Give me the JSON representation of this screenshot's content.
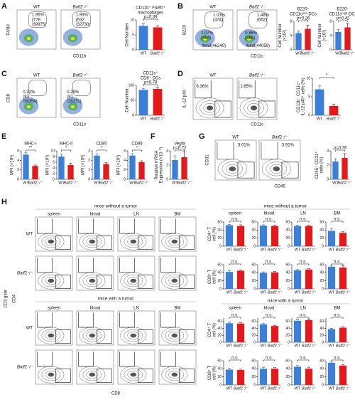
{
  "colors": [
    "#3b7fd8",
    "#e31a1c"
  ],
  "categories": [
    "WT",
    "Batf2⁻/⁻"
  ],
  "panels": [
    {
      "label": "A",
      "y_axis": "F4/80",
      "x_axis": "CD11b",
      "flows": [
        {
          "title": "WT",
          "gates": [
            "1.95%",
            "(778",
            "/39975)"
          ]
        },
        {
          "title": "Batf2⁻/⁻",
          "gates": [
            "1.93%",
            "(632",
            "/32730)"
          ]
        }
      ],
      "bars": [
        {
          "title": [
            "CD11b⁺ F4/80⁺",
            "macrophages"
          ],
          "ylabel": [
            "Cell Number"
          ],
          "ylim": [
            0,
            10
          ],
          "yticks": [
            0,
            5,
            10
          ],
          "values": [
            8,
            7.5
          ],
          "errors": [
            0.8,
            0.6
          ],
          "sig": "p=0.39"
        }
      ]
    },
    {
      "label": "B",
      "y_axis": "B220",
      "x_axis": "CD11c",
      "flows": [
        {
          "title": "WT",
          "gates": [
            "1.03%",
            "(474)",
            "1.07%",
            "(494)",
            "/total(46240)"
          ]
        },
        {
          "title": "Batf2⁻/⁻",
          "gates": [
            "1.48%",
            "(652)",
            "0.86%",
            "(380)",
            "/total(44059)"
          ]
        }
      ],
      "bars": [
        {
          "title": [
            "B220⁺",
            "CD11cᵐⁱᵈ DCs"
          ],
          "ylabel": [
            "Cell Number",
            "(×10²)"
          ],
          "ylim": [
            0,
            8
          ],
          "yticks": [
            0,
            4,
            8
          ],
          "values": [
            4.7,
            5.9
          ],
          "errors": [
            0.6,
            1.0
          ],
          "sig": "p=0.26"
        },
        {
          "title": [
            "B220⁻",
            "CD11cʰⁱᵍʰ DCs"
          ],
          "ylabel": [
            "Cell Number",
            "(×10²)"
          ],
          "ylim": [
            0,
            8
          ],
          "yticks": [
            0,
            4,
            8
          ],
          "values": [
            5,
            6.3
          ],
          "errors": [
            0.7,
            1.2
          ],
          "sig": "p=0.42"
        }
      ]
    },
    {
      "label": "C",
      "y_axis": "CD8",
      "x_axis": "CD11c",
      "flows": [
        {
          "title": "WT",
          "gates": [
            "0.22%",
            "(83",
            "/38354)"
          ]
        },
        {
          "title": "Batf2⁻/⁻",
          "gates": [
            "0.29%",
            "(81",
            "/28231)"
          ]
        }
      ],
      "bars": [
        {
          "title": [
            "CD11c⁺",
            "CD8⁺ DCs"
          ],
          "ylabel": [
            "Cell Number"
          ],
          "ylim": [
            0,
            100
          ],
          "yticks": [
            0,
            50,
            100
          ],
          "values": [
            85,
            88
          ],
          "errors": [
            5,
            6
          ],
          "sig": "p=0.78"
        }
      ]
    },
    {
      "label": "D",
      "y_axis": "IL-12 p40",
      "x_axis": "CD11c",
      "flows": [
        {
          "title": "WT",
          "gates": [
            "6.36%"
          ]
        },
        {
          "title": "Batf2⁻/⁻",
          "gates": [
            "2.85%"
          ]
        }
      ],
      "bars": [
        {
          "ylabel": [
            "CD11b⁻ CD11c⁺",
            "IL-12 p40⁺ cells (%)"
          ],
          "ylim": [
            0,
            10
          ],
          "yticks": [
            0,
            5,
            10
          ],
          "values": [
            7,
            2.5
          ],
          "errors": [
            1.0,
            0.5
          ],
          "sig": "*"
        }
      ]
    },
    {
      "label": "E",
      "bars": [
        {
          "title": [
            "MHC-I"
          ],
          "ylabel": [
            "MFI (×10²)"
          ],
          "ylim": [
            0,
            6
          ],
          "yticks": [
            0,
            2,
            4,
            6
          ],
          "values": [
            5.2,
            2.8
          ],
          "errors": [
            0.4,
            0.2
          ],
          "sig": "**"
        },
        {
          "title": [
            "MHC-II"
          ],
          "ylabel": [
            "MFI (×10³)"
          ],
          "ylim": [
            0,
            10
          ],
          "yticks": [
            0,
            2,
            4,
            6,
            8,
            10
          ],
          "values": [
            8,
            5
          ],
          "errors": [
            0.8,
            0.6
          ],
          "sig": "*"
        },
        {
          "title": [
            "CD80"
          ],
          "ylabel": [
            "MFI (×10²)"
          ],
          "ylim": [
            0,
            3
          ],
          "yticks": [
            0,
            1,
            2,
            3
          ],
          "values": [
            2.5,
            1.6
          ],
          "errors": [
            0.2,
            0.15
          ],
          "sig": "*"
        },
        {
          "title": [
            "CD86"
          ],
          "ylabel": [
            "MFI (×10³)"
          ],
          "ylim": [
            0,
            6
          ],
          "yticks": [
            0,
            2,
            4,
            6
          ],
          "values": [
            5,
            3.6
          ],
          "errors": [
            0.4,
            0.3
          ],
          "sig": "*"
        }
      ]
    },
    {
      "label": "F",
      "bars": [
        {
          "title": [
            "Vegfa"
          ],
          "ylabel": [
            "Relative mRNA",
            "Expression (×10⁻³)"
          ],
          "ylim": [
            0,
            4
          ],
          "yticks": [
            0,
            2,
            4
          ],
          "values": [
            2.7,
            3.1
          ],
          "errors": [
            0.6,
            0.8
          ],
          "sig": "p=0.72"
        }
      ]
    },
    {
      "label": "G",
      "y_axis": "CD31",
      "x_axis": "CD45",
      "flows": [
        {
          "title": "WT",
          "gates": [
            "3.01%"
          ]
        },
        {
          "title": "Batf2⁻/⁻",
          "gates": [
            "3.91%"
          ]
        }
      ],
      "bars": [
        {
          "ylabel": [
            "CD45⁻ CD31⁺",
            "cells (%)"
          ],
          "ylim": [
            0,
            4
          ],
          "yticks": [
            0,
            2,
            4
          ],
          "values": [
            2.5,
            3
          ],
          "errors": [
            0.4,
            0.6
          ],
          "sig": "p=0.76"
        }
      ]
    },
    {
      "label": "H",
      "y_axis": "CD4",
      "gate": "CD3 gate",
      "x_axis": "CD8",
      "columns": [
        "spleen",
        "blood",
        "LN",
        "BM"
      ],
      "flow_groups": [
        {
          "title": "mice without a tumor",
          "rows": [
            {
              "name": "WT",
              "plots": [
                [
                  "48.5%",
                  "44.1%"
                ],
                [
                  "52.8%",
                  "38.9%"
                ],
                [
                  "45.6%",
                  "49.4%"
                ],
                [
                  "40.2%",
                  "41.1%"
                ]
              ]
            },
            {
              "name": "Batf2⁻/⁻",
              "plots": [
                [
                  "45.6%",
                  "48.6%"
                ],
                [
                  "49.0%",
                  "36.1%"
                ],
                [
                  "48.7%",
                  "47.3%"
                ],
                [
                  "31.0%",
                  "49.1%"
                ]
              ]
            }
          ]
        },
        {
          "title": "mice with a tumor",
          "rows": [
            {
              "name": "WT",
              "plots": [
                [
                  "56.5%",
                  "36.5%"
                ],
                [
                  "65.5%",
                  "27.9%"
                ],
                [
                  "51.5%",
                  "43.7%"
                ],
                [
                  "29.7%",
                  "56.9%"
                ]
              ]
            },
            {
              "name": "Batf2⁻/⁻",
              "plots": [
                [
                  "53.5%",
                  "39.3%"
                ],
                [
                  "59.6%",
                  "34.3%"
                ],
                [
                  "49.2%",
                  "46.3%"
                ],
                [
                  "31.0%",
                  "44.5%"
                ]
              ]
            }
          ]
        }
      ],
      "bar_groups": [
        {
          "title": "mice without a tumor",
          "rows": [
            {
              "ylabel": [
                "CD4⁺ T",
                "cell (%)"
              ],
              "ylim": [
                0,
                60
              ],
              "yticks": [
                0,
                20,
                40,
                60
              ],
              "charts": [
                {
                  "values": [
                    52,
                    50
                  ],
                  "errors": [
                    2,
                    3
                  ],
                  "sig": "n.s."
                },
                {
                  "values": [
                    51,
                    50
                  ],
                  "errors": [
                    2,
                    2
                  ],
                  "sig": "n.s."
                },
                {
                  "values": [
                    50,
                    50
                  ],
                  "errors": [
                    2,
                    2
                  ],
                  "sig": "n.s."
                },
                {
                  "values": [
                    38,
                    33
                  ],
                  "errors": [
                    6,
                    3
                  ],
                  "sig": "n.s."
                }
              ]
            },
            {
              "ylabel": [
                "CD8⁺ T",
                "cell (%)"
              ],
              "ylim": [
                0,
                60
              ],
              "yticks": [
                0,
                20,
                40,
                60
              ],
              "charts": [
                {
                  "values": [
                    42,
                    45
                  ],
                  "errors": [
                    3,
                    2
                  ],
                  "sig": "n.s."
                },
                {
                  "values": [
                    40,
                    41
                  ],
                  "errors": [
                    2,
                    2
                  ],
                  "sig": "n.s."
                },
                {
                  "values": [
                    46,
                    48
                  ],
                  "errors": [
                    3,
                    2
                  ],
                  "sig": "n.s."
                },
                {
                  "values": [
                    55,
                    53
                  ],
                  "errors": [
                    3,
                    5
                  ],
                  "sig": "n.s."
                }
              ]
            }
          ]
        },
        {
          "title": "mice with a tumor",
          "rows": [
            {
              "ylabel": [
                "CD4⁺ T",
                "cell (%)"
              ],
              "ylim": [
                0,
                70
              ],
              "yticks": [
                0,
                20,
                40,
                60
              ],
              "charts": [
                {
                  "values": [
                    55,
                    54
                  ],
                  "errors": [
                    3,
                    3
                  ],
                  "sig": "n.s."
                },
                {
                  "values": [
                    52,
                    47
                  ],
                  "errors": [
                    3,
                    2
                  ],
                  "sig": "n.s."
                },
                {
                  "values": [
                    62,
                    64
                  ],
                  "errors": [
                    3,
                    3
                  ],
                  "sig": "n.s."
                },
                {
                  "values": [
                    38,
                    42
                  ],
                  "errors": [
                    2,
                    2
                  ],
                  "sig": "n.s."
                }
              ]
            },
            {
              "ylabel": [
                "CD8⁺ T",
                "cell (%)"
              ],
              "ylim": [
                0,
                60
              ],
              "yticks": [
                0,
                20,
                40,
                60
              ],
              "charts": [
                {
                  "values": [
                    38,
                    37
                  ],
                  "errors": [
                    3,
                    2
                  ],
                  "sig": "n.s."
                },
                {
                  "values": [
                    40,
                    40
                  ],
                  "errors": [
                    4,
                    3
                  ],
                  "sig": "n.s."
                },
                {
                  "values": [
                    45,
                    40
                  ],
                  "errors": [
                    3,
                    4
                  ],
                  "sig": "n.s."
                },
                {
                  "values": [
                    55,
                    48
                  ],
                  "errors": [
                    3,
                    3
                  ],
                  "sig": "n.s."
                }
              ]
            }
          ]
        }
      ]
    }
  ]
}
